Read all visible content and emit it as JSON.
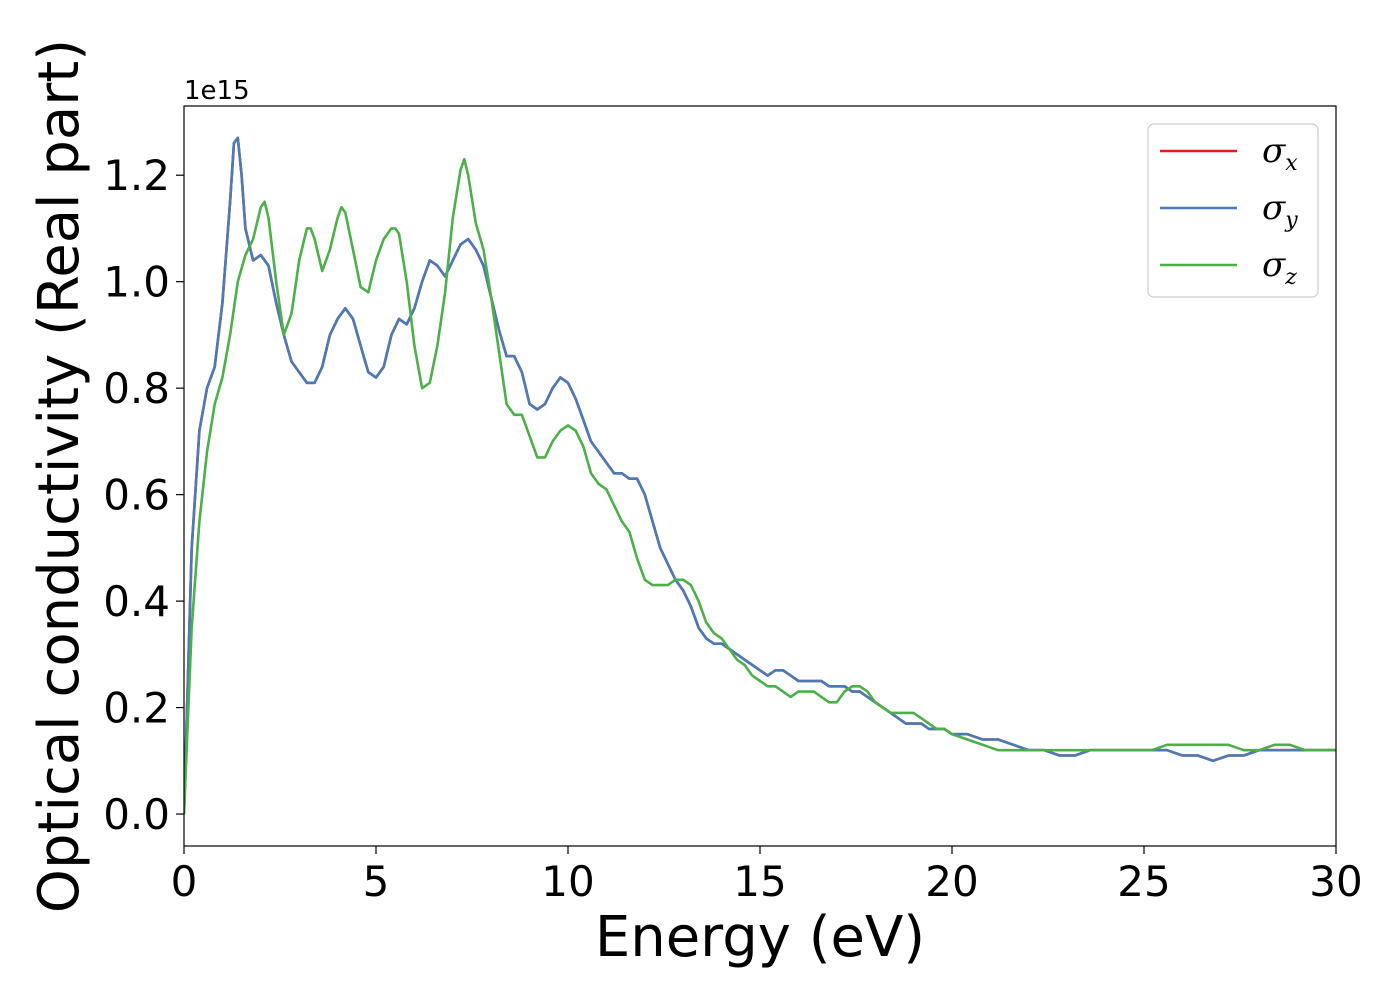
{
  "chart_data": {
    "type": "line",
    "xlabel": "Energy (eV)",
    "ylabel": "Optical conductivity (Real part)",
    "y_offset_label": "1e15",
    "xlim": [
      0,
      30
    ],
    "ylim": [
      -0.06,
      1.33
    ],
    "xticks": [
      0,
      5,
      10,
      15,
      20,
      25,
      30
    ],
    "yticks": [
      0.0,
      0.2,
      0.4,
      0.6,
      0.8,
      1.0,
      1.2
    ],
    "xtick_labels": [
      "0",
      "5",
      "10",
      "15",
      "20",
      "25",
      "30"
    ],
    "ytick_labels": [
      "0.0",
      "0.2",
      "0.4",
      "0.6",
      "0.8",
      "1.0",
      "1.2"
    ],
    "grid": false,
    "legend_position": "top-right",
    "series": [
      {
        "name": "σx",
        "symbol": "σ",
        "subscript": "x",
        "color": "#e41a1c",
        "x": [
          0,
          0.2,
          0.4,
          0.6,
          0.8,
          1.0,
          1.2,
          1.3,
          1.4,
          1.5,
          1.6,
          1.8,
          2.0,
          2.2,
          2.4,
          2.6,
          2.8,
          3.0,
          3.2,
          3.4,
          3.6,
          3.8,
          4.0,
          4.2,
          4.4,
          4.6,
          4.8,
          5.0,
          5.2,
          5.4,
          5.6,
          5.8,
          6.0,
          6.2,
          6.4,
          6.6,
          6.8,
          7.0,
          7.2,
          7.4,
          7.6,
          7.8,
          8.0,
          8.2,
          8.4,
          8.6,
          8.8,
          9.0,
          9.2,
          9.4,
          9.6,
          9.8,
          10.0,
          10.2,
          10.4,
          10.6,
          10.8,
          11.0,
          11.2,
          11.4,
          11.6,
          11.8,
          12.0,
          12.2,
          12.4,
          12.6,
          12.8,
          13.0,
          13.2,
          13.4,
          13.6,
          13.8,
          14.0,
          14.2,
          14.4,
          14.6,
          14.8,
          15.0,
          15.2,
          15.4,
          15.6,
          15.8,
          16.0,
          16.2,
          16.4,
          16.6,
          16.8,
          17.0,
          17.2,
          17.4,
          17.6,
          17.8,
          18.0,
          18.2,
          18.4,
          18.6,
          18.8,
          19.0,
          19.2,
          19.4,
          19.6,
          19.8,
          20.0,
          20.4,
          20.8,
          21.2,
          21.6,
          22.0,
          22.4,
          22.8,
          23.2,
          23.6,
          24.0,
          24.4,
          24.8,
          25.2,
          25.6,
          26.0,
          26.4,
          26.8,
          27.2,
          27.6,
          28.0,
          28.4,
          28.8,
          29.2,
          29.6,
          30.0
        ],
        "y": [
          0.0,
          0.5,
          0.72,
          0.8,
          0.84,
          0.96,
          1.15,
          1.26,
          1.27,
          1.2,
          1.1,
          1.04,
          1.05,
          1.03,
          0.96,
          0.9,
          0.85,
          0.83,
          0.81,
          0.81,
          0.84,
          0.9,
          0.93,
          0.95,
          0.93,
          0.88,
          0.83,
          0.82,
          0.84,
          0.9,
          0.93,
          0.92,
          0.95,
          1.0,
          1.04,
          1.03,
          1.01,
          1.04,
          1.07,
          1.08,
          1.06,
          1.03,
          0.97,
          0.91,
          0.86,
          0.86,
          0.83,
          0.77,
          0.76,
          0.77,
          0.8,
          0.82,
          0.81,
          0.78,
          0.74,
          0.7,
          0.68,
          0.66,
          0.64,
          0.64,
          0.63,
          0.63,
          0.6,
          0.55,
          0.5,
          0.47,
          0.44,
          0.42,
          0.39,
          0.35,
          0.33,
          0.32,
          0.32,
          0.31,
          0.3,
          0.29,
          0.28,
          0.27,
          0.26,
          0.27,
          0.27,
          0.26,
          0.25,
          0.25,
          0.25,
          0.25,
          0.24,
          0.24,
          0.24,
          0.23,
          0.23,
          0.22,
          0.21,
          0.2,
          0.19,
          0.18,
          0.17,
          0.17,
          0.17,
          0.16,
          0.16,
          0.16,
          0.15,
          0.15,
          0.14,
          0.14,
          0.13,
          0.12,
          0.12,
          0.11,
          0.11,
          0.12,
          0.12,
          0.12,
          0.12,
          0.12,
          0.12,
          0.11,
          0.11,
          0.1,
          0.11,
          0.11,
          0.12,
          0.12,
          0.12,
          0.12,
          0.12,
          0.12
        ]
      },
      {
        "name": "σy",
        "symbol": "σ",
        "subscript": "y",
        "color": "#4a7bb4",
        "x": [
          0,
          0.2,
          0.4,
          0.6,
          0.8,
          1.0,
          1.2,
          1.3,
          1.4,
          1.5,
          1.6,
          1.8,
          2.0,
          2.2,
          2.4,
          2.6,
          2.8,
          3.0,
          3.2,
          3.4,
          3.6,
          3.8,
          4.0,
          4.2,
          4.4,
          4.6,
          4.8,
          5.0,
          5.2,
          5.4,
          5.6,
          5.8,
          6.0,
          6.2,
          6.4,
          6.6,
          6.8,
          7.0,
          7.2,
          7.4,
          7.6,
          7.8,
          8.0,
          8.2,
          8.4,
          8.6,
          8.8,
          9.0,
          9.2,
          9.4,
          9.6,
          9.8,
          10.0,
          10.2,
          10.4,
          10.6,
          10.8,
          11.0,
          11.2,
          11.4,
          11.6,
          11.8,
          12.0,
          12.2,
          12.4,
          12.6,
          12.8,
          13.0,
          13.2,
          13.4,
          13.6,
          13.8,
          14.0,
          14.2,
          14.4,
          14.6,
          14.8,
          15.0,
          15.2,
          15.4,
          15.6,
          15.8,
          16.0,
          16.2,
          16.4,
          16.6,
          16.8,
          17.0,
          17.2,
          17.4,
          17.6,
          17.8,
          18.0,
          18.2,
          18.4,
          18.6,
          18.8,
          19.0,
          19.2,
          19.4,
          19.6,
          19.8,
          20.0,
          20.4,
          20.8,
          21.2,
          21.6,
          22.0,
          22.4,
          22.8,
          23.2,
          23.6,
          24.0,
          24.4,
          24.8,
          25.2,
          25.6,
          26.0,
          26.4,
          26.8,
          27.2,
          27.6,
          28.0,
          28.4,
          28.8,
          29.2,
          29.6,
          30.0
        ],
        "y": [
          0.0,
          0.5,
          0.72,
          0.8,
          0.84,
          0.96,
          1.15,
          1.26,
          1.27,
          1.2,
          1.1,
          1.04,
          1.05,
          1.03,
          0.96,
          0.9,
          0.85,
          0.83,
          0.81,
          0.81,
          0.84,
          0.9,
          0.93,
          0.95,
          0.93,
          0.88,
          0.83,
          0.82,
          0.84,
          0.9,
          0.93,
          0.92,
          0.95,
          1.0,
          1.04,
          1.03,
          1.01,
          1.04,
          1.07,
          1.08,
          1.06,
          1.03,
          0.97,
          0.91,
          0.86,
          0.86,
          0.83,
          0.77,
          0.76,
          0.77,
          0.8,
          0.82,
          0.81,
          0.78,
          0.74,
          0.7,
          0.68,
          0.66,
          0.64,
          0.64,
          0.63,
          0.63,
          0.6,
          0.55,
          0.5,
          0.47,
          0.44,
          0.42,
          0.39,
          0.35,
          0.33,
          0.32,
          0.32,
          0.31,
          0.3,
          0.29,
          0.28,
          0.27,
          0.26,
          0.27,
          0.27,
          0.26,
          0.25,
          0.25,
          0.25,
          0.25,
          0.24,
          0.24,
          0.24,
          0.23,
          0.23,
          0.22,
          0.21,
          0.2,
          0.19,
          0.18,
          0.17,
          0.17,
          0.17,
          0.16,
          0.16,
          0.16,
          0.15,
          0.15,
          0.14,
          0.14,
          0.13,
          0.12,
          0.12,
          0.11,
          0.11,
          0.12,
          0.12,
          0.12,
          0.12,
          0.12,
          0.12,
          0.11,
          0.11,
          0.1,
          0.11,
          0.11,
          0.12,
          0.12,
          0.12,
          0.12,
          0.12,
          0.12
        ]
      },
      {
        "name": "σz",
        "symbol": "σ",
        "subscript": "z",
        "color": "#4daf4a",
        "x": [
          0,
          0.2,
          0.4,
          0.6,
          0.8,
          1.0,
          1.2,
          1.4,
          1.6,
          1.8,
          2.0,
          2.1,
          2.2,
          2.4,
          2.6,
          2.8,
          3.0,
          3.2,
          3.3,
          3.4,
          3.6,
          3.8,
          4.0,
          4.1,
          4.2,
          4.4,
          4.6,
          4.8,
          5.0,
          5.2,
          5.4,
          5.5,
          5.6,
          5.8,
          6.0,
          6.2,
          6.4,
          6.6,
          6.8,
          7.0,
          7.2,
          7.3,
          7.4,
          7.6,
          7.8,
          8.0,
          8.2,
          8.4,
          8.6,
          8.8,
          9.0,
          9.2,
          9.4,
          9.6,
          9.8,
          10.0,
          10.2,
          10.4,
          10.6,
          10.8,
          11.0,
          11.2,
          11.4,
          11.6,
          11.8,
          12.0,
          12.2,
          12.4,
          12.6,
          12.8,
          13.0,
          13.2,
          13.4,
          13.6,
          13.8,
          14.0,
          14.2,
          14.4,
          14.6,
          14.8,
          15.0,
          15.2,
          15.4,
          15.6,
          15.8,
          16.0,
          16.2,
          16.4,
          16.6,
          16.8,
          17.0,
          17.2,
          17.4,
          17.6,
          17.8,
          18.0,
          18.2,
          18.4,
          18.6,
          18.8,
          19.0,
          19.2,
          19.4,
          19.6,
          19.8,
          20.0,
          20.4,
          20.8,
          21.2,
          21.6,
          22.0,
          22.4,
          22.8,
          23.2,
          23.6,
          24.0,
          24.4,
          24.8,
          25.2,
          25.6,
          26.0,
          26.4,
          26.8,
          27.2,
          27.6,
          28.0,
          28.4,
          28.8,
          29.2,
          29.6,
          30.0
        ],
        "y": [
          0.0,
          0.35,
          0.55,
          0.68,
          0.77,
          0.82,
          0.9,
          1.0,
          1.05,
          1.08,
          1.14,
          1.15,
          1.12,
          1.0,
          0.9,
          0.94,
          1.04,
          1.1,
          1.1,
          1.08,
          1.02,
          1.06,
          1.12,
          1.14,
          1.13,
          1.06,
          0.99,
          0.98,
          1.04,
          1.08,
          1.1,
          1.1,
          1.09,
          1.0,
          0.88,
          0.8,
          0.81,
          0.88,
          0.98,
          1.12,
          1.21,
          1.23,
          1.2,
          1.11,
          1.06,
          0.97,
          0.87,
          0.77,
          0.75,
          0.75,
          0.71,
          0.67,
          0.67,
          0.7,
          0.72,
          0.73,
          0.72,
          0.69,
          0.64,
          0.62,
          0.61,
          0.58,
          0.55,
          0.53,
          0.48,
          0.44,
          0.43,
          0.43,
          0.43,
          0.44,
          0.44,
          0.43,
          0.4,
          0.36,
          0.34,
          0.33,
          0.31,
          0.29,
          0.28,
          0.26,
          0.25,
          0.24,
          0.24,
          0.23,
          0.22,
          0.23,
          0.23,
          0.23,
          0.22,
          0.21,
          0.21,
          0.23,
          0.24,
          0.24,
          0.23,
          0.21,
          0.2,
          0.19,
          0.19,
          0.19,
          0.19,
          0.18,
          0.17,
          0.16,
          0.16,
          0.15,
          0.14,
          0.13,
          0.12,
          0.12,
          0.12,
          0.12,
          0.12,
          0.12,
          0.12,
          0.12,
          0.12,
          0.12,
          0.12,
          0.13,
          0.13,
          0.13,
          0.13,
          0.13,
          0.12,
          0.12,
          0.13,
          0.13,
          0.12,
          0.12,
          0.12
        ]
      }
    ]
  }
}
